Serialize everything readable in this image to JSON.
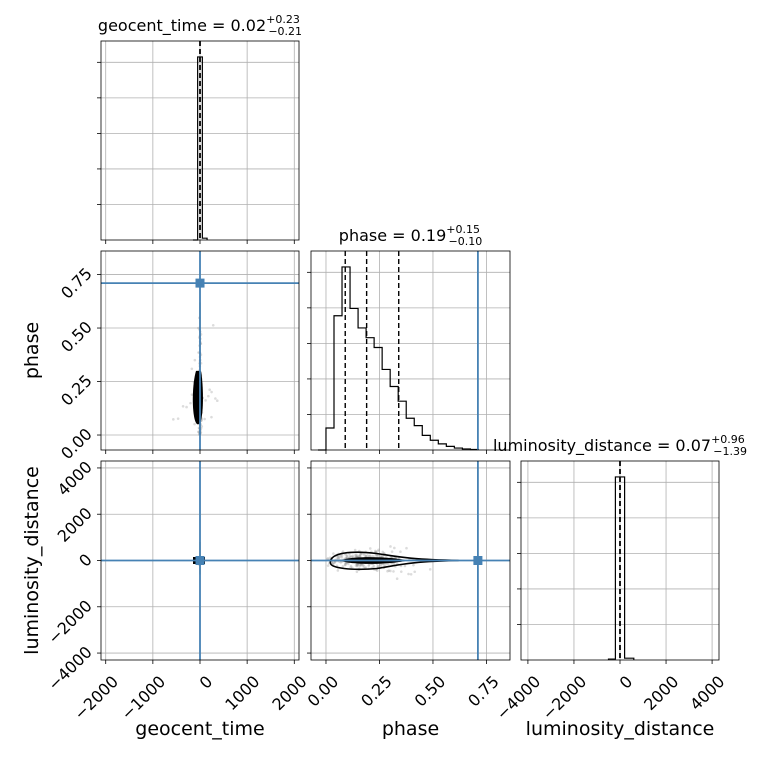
{
  "chart_data": {
    "type": "corner",
    "parameters": [
      "geocent_time",
      "phase",
      "luminosity_distance"
    ],
    "truth_color": "#4682b4",
    "truths": {
      "geocent_time": 0,
      "phase": 0.71,
      "luminosity_distance": 0
    },
    "titles": [
      {
        "param": "geocent_time",
        "label": "geocent_time",
        "median": "0.02",
        "plus": "+0.23",
        "minus": "−0.21"
      },
      {
        "param": "phase",
        "label": "phase",
        "median": "0.19",
        "plus": "+0.15",
        "minus": "−0.10"
      },
      {
        "param": "luminosity_distance",
        "label": "luminosity_distance",
        "median": "0.07",
        "plus": "+0.96",
        "minus": "−1.39"
      }
    ],
    "axis_labels": {
      "x": [
        "geocent_time",
        "phase",
        "luminosity_distance"
      ],
      "y": [
        "phase",
        "luminosity_distance"
      ]
    },
    "ranges": {
      "geocent_time": [
        -2100,
        2100
      ],
      "phase": [
        -0.07,
        0.86
      ],
      "luminosity_distance": [
        -4300,
        4300
      ]
    },
    "ticks": {
      "geocent_time": {
        "values": [
          -2000,
          -1000,
          0,
          1000,
          2000
        ],
        "labels": [
          "−2000",
          "−1000",
          "0",
          "1000",
          "2000"
        ]
      },
      "phase": {
        "values": [
          0.0,
          0.25,
          0.5,
          0.75
        ],
        "labels": [
          "0.00",
          "0.25",
          "0.50",
          "0.75"
        ]
      },
      "luminosity_distance": {
        "values": [
          -4000,
          -2000,
          0,
          2000,
          4000
        ],
        "labels": [
          "−4000",
          "−2000",
          "0",
          "2000",
          "4000"
        ]
      }
    },
    "histograms": {
      "geocent_time": {
        "edges": [
          -150,
          -50,
          50,
          150
        ],
        "counts": [
          0,
          1.0,
          0.01
        ]
      },
      "phase": {
        "edges": [
          -0.0375,
          0.0,
          0.0375,
          0.075,
          0.1125,
          0.15,
          0.1875,
          0.225,
          0.2625,
          0.3,
          0.3375,
          0.375,
          0.4125,
          0.45,
          0.4875,
          0.525,
          0.5625,
          0.6,
          0.6375,
          0.675,
          0.7125
        ],
        "counts": [
          0.0,
          0.09,
          0.55,
          0.75,
          0.58,
          0.5,
          0.46,
          0.42,
          0.33,
          0.26,
          0.2,
          0.13,
          0.1,
          0.06,
          0.04,
          0.025,
          0.015,
          0.008,
          0.004,
          0.002
        ]
      },
      "luminosity_distance": {
        "edges": [
          -500,
          -200,
          200,
          600
        ],
        "counts": [
          0.005,
          1.0,
          0.01
        ]
      }
    },
    "quantiles": {
      "geocent_time": [
        -0.19,
        0.02,
        0.25
      ],
      "phase": [
        0.09,
        0.19,
        0.34
      ],
      "luminosity_distance": [
        -1.32,
        0.07,
        1.03
      ]
    }
  }
}
